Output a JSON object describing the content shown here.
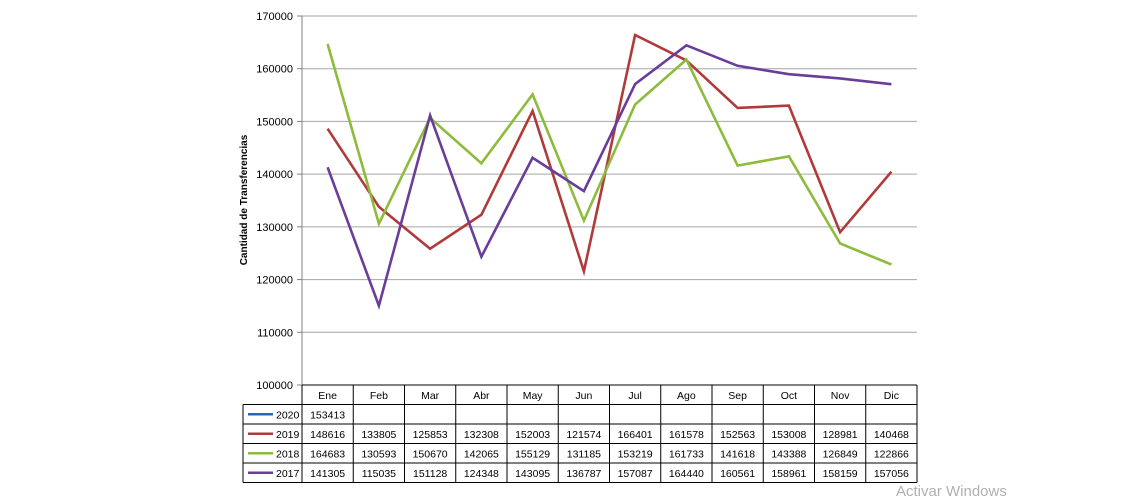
{
  "chart_data": {
    "type": "line",
    "ylabel": "Cantidad de Transferencias",
    "ylim": [
      100000,
      170000
    ],
    "yticks": [
      100000,
      110000,
      120000,
      130000,
      140000,
      150000,
      160000,
      170000
    ],
    "categories": [
      "Ene",
      "Feb",
      "Mar",
      "Abr",
      "May",
      "Jun",
      "Jul",
      "Ago",
      "Sep",
      "Oct",
      "Nov",
      "Dic"
    ],
    "grid": true,
    "legend": "data-table-below",
    "series": [
      {
        "name": "2020",
        "color": "#2e63b8",
        "values": [
          153413,
          null,
          null,
          null,
          null,
          null,
          null,
          null,
          null,
          null,
          null,
          null
        ]
      },
      {
        "name": "2019",
        "color": "#b03a3a",
        "values": [
          148616,
          133805,
          125853,
          132308,
          152003,
          121574,
          166401,
          161578,
          152563,
          153008,
          128981,
          140468
        ]
      },
      {
        "name": "2018",
        "color": "#8dbb3c",
        "values": [
          164683,
          130593,
          150670,
          142065,
          155129,
          131185,
          153219,
          161733,
          141618,
          143388,
          126849,
          122866
        ]
      },
      {
        "name": "2017",
        "color": "#6a3d9a",
        "values": [
          141305,
          115035,
          151128,
          124348,
          143095,
          136787,
          157087,
          164440,
          160561,
          158961,
          158159,
          157056
        ]
      }
    ]
  },
  "watermark": "Activar Windows"
}
